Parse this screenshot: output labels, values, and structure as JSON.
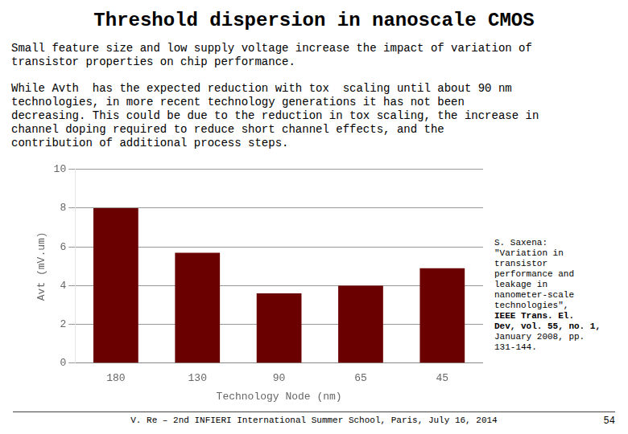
{
  "chart_data": {
    "type": "bar",
    "title": "Threshold dispersion in nanoscale CMOS",
    "annotations": [
      [
        "Small feature size and low supply voltage increase the impact of variation of",
        "transistor properties on chip performance."
      ],
      [
        "While Avth  has the expected reduction with tox  scaling until about 90 nm",
        "technologies, in more recent technology generations it has not been",
        "decreasing. This could be due to the reduction in tox scaling, the increase in",
        "channel doping required to reduce short channel effects, and the",
        "contribution of additional process steps."
      ],
      [
        "S. Saxena:",
        "\"Variation in",
        "transistor",
        "performance and",
        "leakage in",
        "nanometer-scale",
        "technologies\",",
        "IEEE Trans. El.",
        "Dev, vol. 55, no. 1,",
        "January 2008, pp.",
        "131-144."
      ],
      [
        "V. Re – 2nd INFIERI International Summer School, Paris, July 16, 2014"
      ],
      [
        "54"
      ]
    ],
    "categories": [
      "180",
      "130",
      "90",
      "65",
      "45"
    ],
    "values": [
      8.0,
      5.7,
      3.6,
      4.0,
      4.9
    ],
    "color": "#6b0000",
    "xlabel": "Technology Node (nm)",
    "ylabel": "Avt (mV.um)",
    "ylim": [
      0,
      10
    ],
    "yticks": [
      0,
      2,
      4,
      6,
      8,
      10
    ],
    "grid": true
  }
}
